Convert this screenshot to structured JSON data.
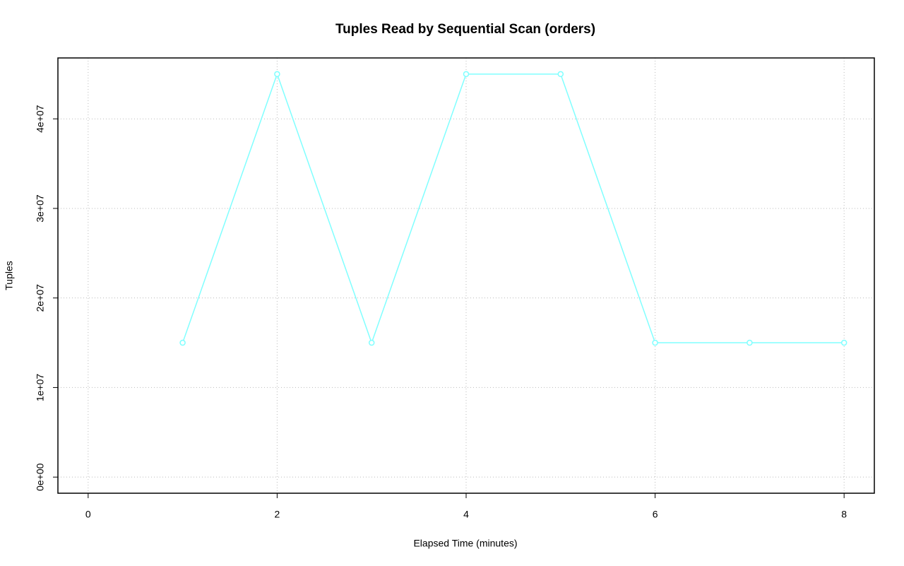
{
  "chart_data": {
    "type": "line",
    "title": "Tuples Read by Sequential Scan (orders)",
    "x_label": "Elapsed Time (minutes)",
    "y_label": "Tuples",
    "x": [
      1,
      2,
      3,
      4,
      5,
      6,
      7,
      8
    ],
    "series": [
      {
        "color": "#80ffff",
        "values": [
          15000000,
          45000000,
          15000000,
          45000000,
          45000000,
          15000000,
          15000000,
          15000000
        ]
      }
    ],
    "xlim": [
      -0.32,
      8.32
    ],
    "xticks": [
      0,
      2,
      4,
      6,
      8
    ],
    "ylim": [
      -1800000,
      46800000
    ],
    "yticks": [
      {
        "value": 0,
        "label": "0e+00"
      },
      {
        "value": 10000000,
        "label": "1e+07"
      },
      {
        "value": 20000000,
        "label": "2e+07"
      },
      {
        "value": 30000000,
        "label": "3e+07"
      },
      {
        "value": 40000000,
        "label": "4e+07"
      }
    ],
    "grid": true
  }
}
